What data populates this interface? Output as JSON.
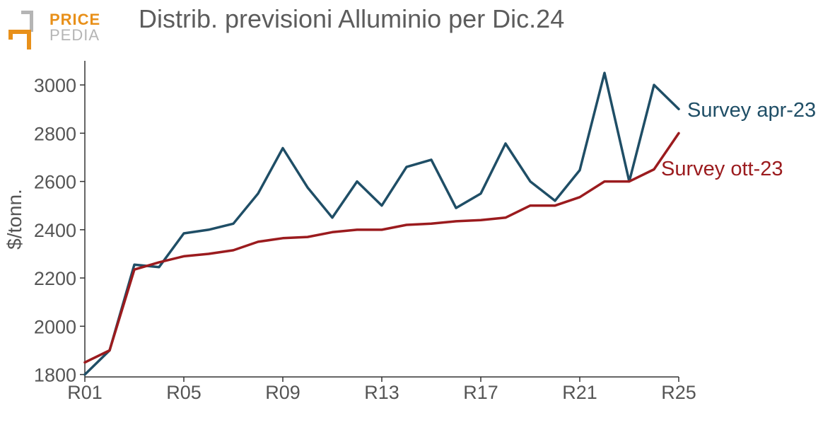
{
  "logo": {
    "line1": "PRICE",
    "line2": "PEDIA",
    "accent": "#e8901a",
    "grey": "#b5b5b5"
  },
  "chart_data": {
    "type": "line",
    "title": "Distrib. previsioni Alluminio per Dic.24",
    "xlabel": "",
    "ylabel": "$/tonn.",
    "categories": [
      "R01",
      "R02",
      "R03",
      "R04",
      "R05",
      "R06",
      "R07",
      "R08",
      "R09",
      "R10",
      "R11",
      "R12",
      "R13",
      "R14",
      "R15",
      "R16",
      "R17",
      "R18",
      "R19",
      "R20",
      "R21",
      "R22",
      "R23",
      "R24",
      "R25"
    ],
    "x_tick_labels": [
      "R01",
      "R05",
      "R09",
      "R13",
      "R17",
      "R21",
      "R25"
    ],
    "y_ticks": [
      1800,
      2000,
      2200,
      2400,
      2600,
      2800,
      3000
    ],
    "ylim": [
      1790,
      3100
    ],
    "grid": false,
    "legend": "direct labels at line ends",
    "series": [
      {
        "name": "Survey apr-23",
        "color": "#1f4e66",
        "values": [
          1800,
          1900,
          2255,
          2245,
          2385,
          2400,
          2425,
          2550,
          2738,
          2575,
          2450,
          2600,
          2500,
          2660,
          2690,
          2490,
          2550,
          2757,
          2600,
          2520,
          2647,
          3050,
          2600,
          3000,
          2900
        ]
      },
      {
        "name": "Survey ott-23",
        "color": "#9b1b1e",
        "values": [
          1850,
          1900,
          2235,
          2265,
          2290,
          2300,
          2315,
          2350,
          2365,
          2370,
          2390,
          2400,
          2400,
          2420,
          2425,
          2435,
          2440,
          2450,
          2500,
          2500,
          2535,
          2600,
          2600,
          2650,
          2800
        ]
      }
    ]
  }
}
